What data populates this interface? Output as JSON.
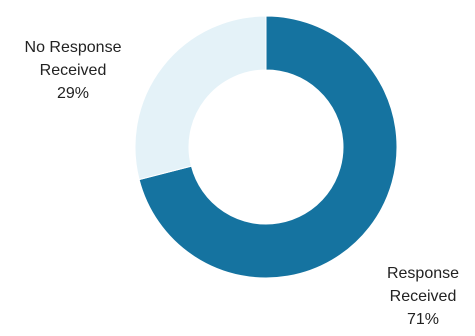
{
  "chart_data": {
    "type": "pie",
    "variant": "donut",
    "start": "top, clockwise",
    "slices": [
      {
        "label_lines": [
          "Response",
          "Received"
        ],
        "value": 71,
        "value_label": "71%",
        "color": "#1573A0"
      },
      {
        "label_lines": [
          "No Response",
          "Received"
        ],
        "value": 29,
        "value_label": "29%",
        "color": "#E4F2F8"
      }
    ],
    "legend": "none"
  }
}
